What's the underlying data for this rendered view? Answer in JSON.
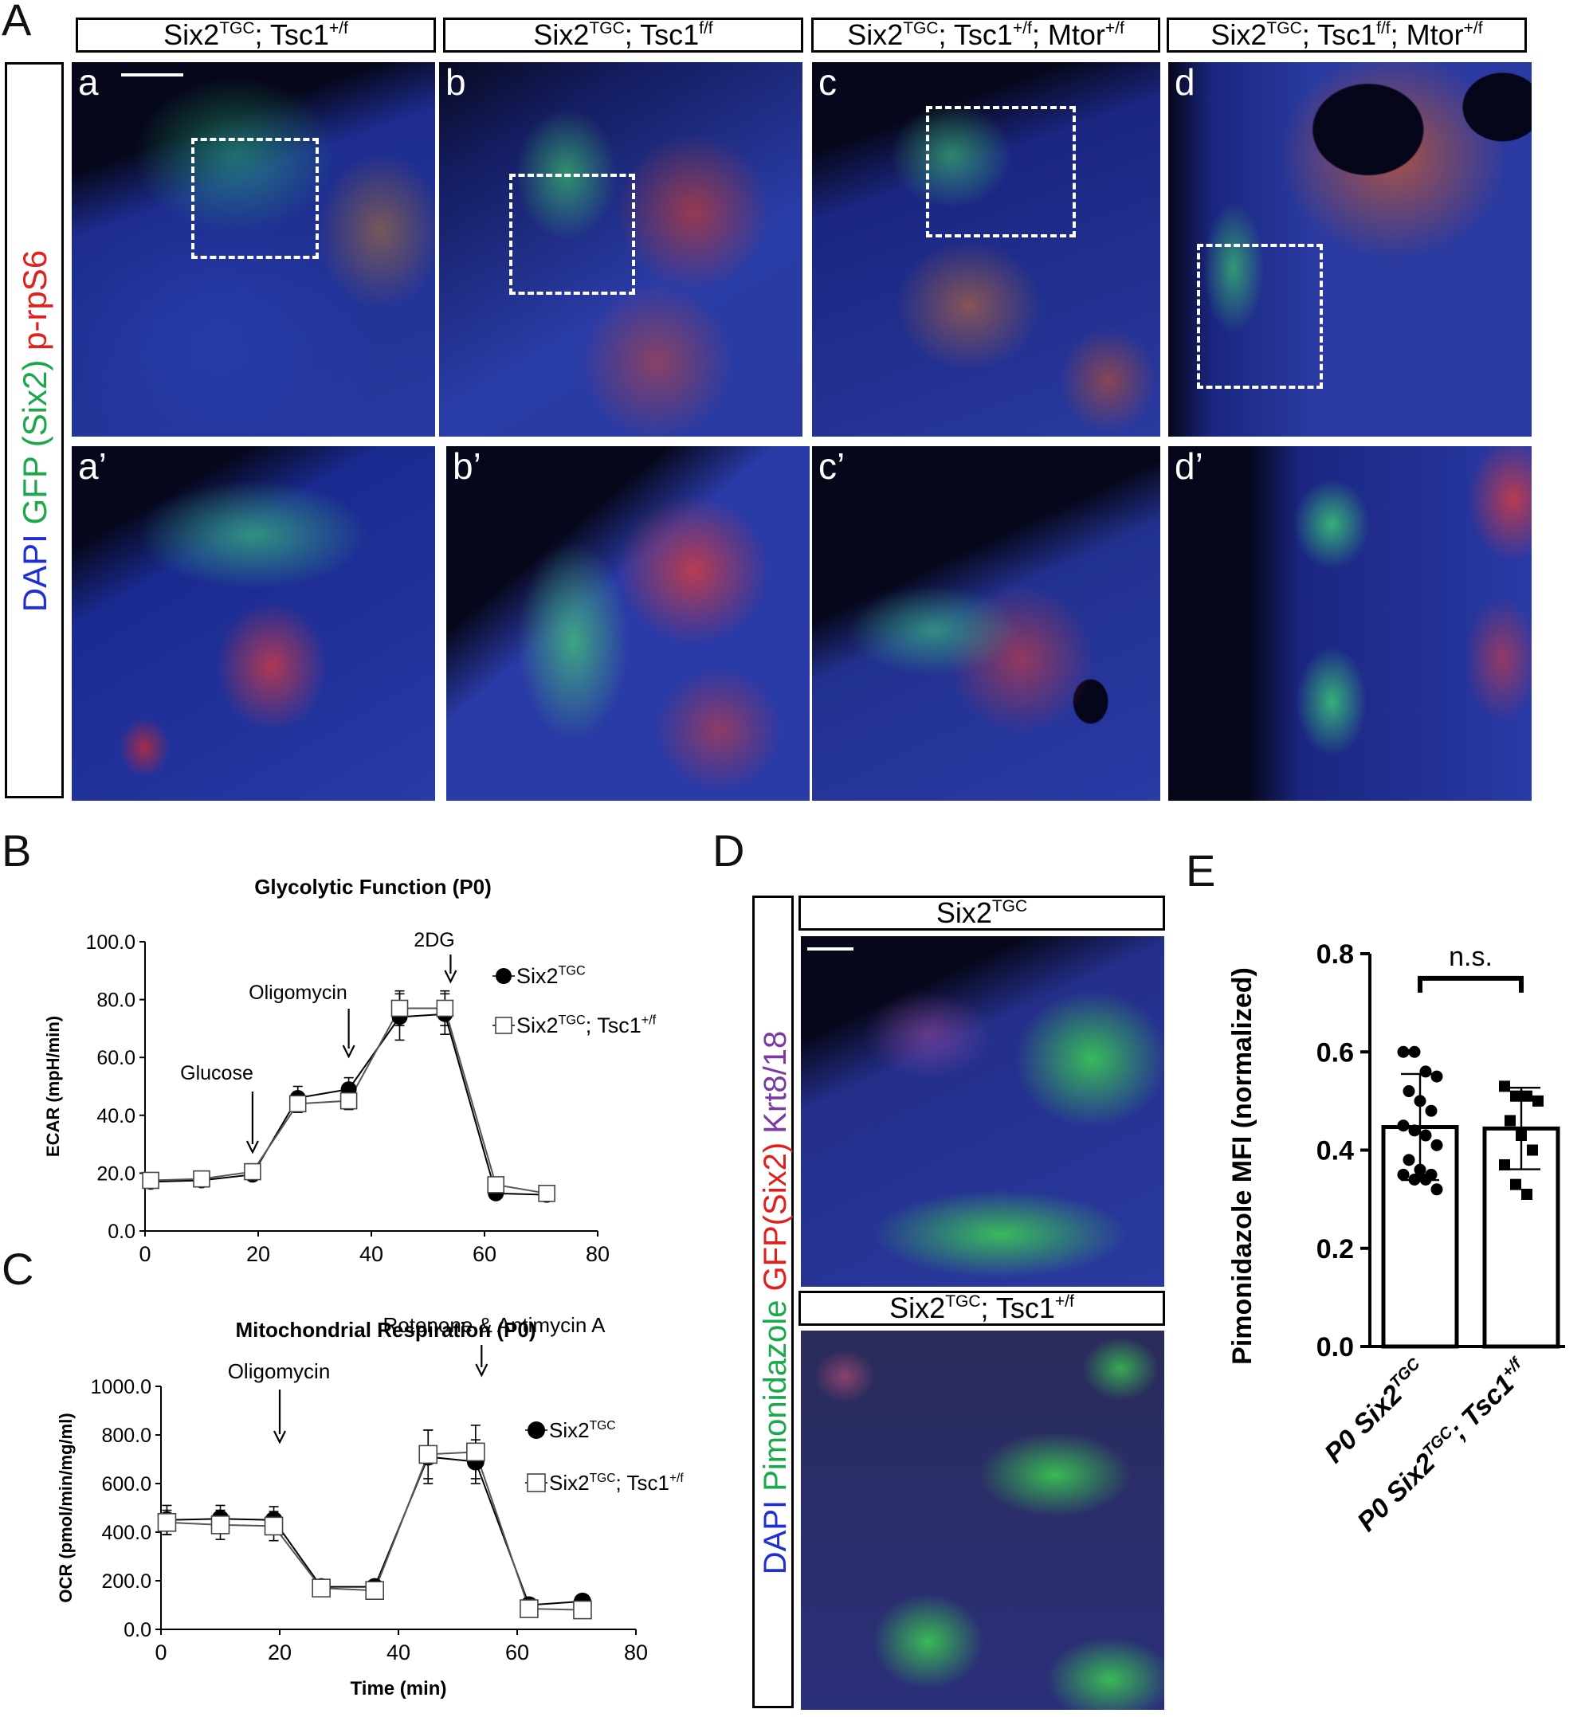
{
  "panels": {
    "A": "A",
    "B": "B",
    "C": "C",
    "D": "D",
    "E": "E"
  },
  "panelA": {
    "headers": [
      {
        "base": "Six2",
        "sup": "TGC",
        "rest": "; Tsc1",
        "sup2": "+/f",
        "rest2": "",
        "sup3": ""
      },
      {
        "base": "Six2",
        "sup": "TGC",
        "rest": "; Tsc1",
        "sup2": "f/f",
        "rest2": "",
        "sup3": ""
      },
      {
        "base": "Six2",
        "sup": "TGC",
        "rest": "; Tsc1",
        "sup2": "+/f",
        "rest2": "; Mtor",
        "sup3": "+/f"
      },
      {
        "base": "Six2",
        "sup": "TGC",
        "rest": "; Tsc1",
        "sup2": "f/f",
        "rest2": "; Mtor",
        "sup3": "+/f"
      }
    ],
    "stain_label": [
      {
        "text": "DAPI",
        "color": "#1f2fd6"
      },
      {
        "text": " GFP (Six2)",
        "color": "#1aa84a"
      },
      {
        "text": " p-rpS6",
        "color": "#e0201b"
      }
    ],
    "top_labels": [
      "a",
      "b",
      "c",
      "d"
    ],
    "bottom_labels": [
      "a’",
      "b’",
      "c’",
      "d’"
    ]
  },
  "panelD": {
    "headers": [
      {
        "base": "Six2",
        "sup": "TGC",
        "rest": "",
        "sup2": ""
      },
      {
        "base": "Six2",
        "sup": "TGC",
        "rest": "; Tsc1",
        "sup2": "+/f"
      }
    ],
    "stain_label": [
      {
        "text": "DAPI",
        "color": "#1f2fd6"
      },
      {
        "text": " Pimonidazole",
        "color": "#1aa84a"
      },
      {
        "text": " GFP(Six2)",
        "color": "#e0201b"
      },
      {
        "text": " Krt8/18",
        "color": "#7a3aa0"
      }
    ]
  },
  "chart_data": [
    {
      "id": "B",
      "type": "line",
      "title": "Glycolytic Function (P0)",
      "xlabel": "",
      "ylabel": "ECAR (mpH/min)",
      "xlim": [
        0,
        80
      ],
      "ylim": [
        0,
        100
      ],
      "xticks": [
        "0",
        "20",
        "40",
        "60",
        "80"
      ],
      "yticks": [
        "0.0",
        "20.0",
        "40.0",
        "60.0",
        "80.0",
        "100.0"
      ],
      "x": [
        1,
        10,
        19,
        27,
        36,
        45,
        53,
        62,
        71
      ],
      "series": [
        {
          "name": "Six2TGC",
          "marker": "filled-circle",
          "values": [
            17,
            17.5,
            19.5,
            46,
            49,
            74,
            75,
            13,
            12.5
          ],
          "err": [
            1.5,
            1.5,
            1.5,
            4,
            4,
            8,
            7,
            1.5,
            1.5
          ]
        },
        {
          "name": "Six2TGC; Tsc1+/f",
          "marker": "open-square",
          "values": [
            17.5,
            18,
            20.5,
            44,
            45,
            77,
            77,
            16,
            13
          ],
          "err": [
            1.5,
            1.5,
            1.5,
            3,
            3,
            6,
            6,
            1.5,
            1.5
          ]
        }
      ],
      "annotations": [
        {
          "text": "Glucose",
          "x": 19
        },
        {
          "text": "Oligomycin",
          "x": 36
        },
        {
          "text": "2DG",
          "x": 54
        }
      ],
      "legend": {
        "position": "right",
        "items": [
          {
            "base": "Six2",
            "sup": "TGC",
            "rest": "",
            "sup2": ""
          },
          {
            "base": "Six2",
            "sup": "TGC",
            "rest": "; Tsc1",
            "sup2": "+/f"
          }
        ]
      }
    },
    {
      "id": "C",
      "type": "line",
      "title": "Mitochondrial Respiration (P0)",
      "xlabel": "Time (min)",
      "ylabel": "OCR (pmol/min/mg/ml)",
      "xlim": [
        0,
        80
      ],
      "ylim": [
        0,
        1000
      ],
      "xticks": [
        "0",
        "20",
        "40",
        "60",
        "80"
      ],
      "yticks": [
        "0.0",
        "200.0",
        "400.0",
        "600.0",
        "800.0",
        "1000.0"
      ],
      "x": [
        1,
        10,
        19,
        27,
        36,
        45,
        53,
        62,
        71
      ],
      "series": [
        {
          "name": "Six2TGC",
          "marker": "filled-circle",
          "values": [
            450,
            455,
            450,
            175,
            175,
            710,
            690,
            100,
            115
          ],
          "err": [
            60,
            55,
            55,
            20,
            20,
            110,
            90,
            20,
            20
          ]
        },
        {
          "name": "Six2TGC; Tsc1+/f",
          "marker": "open-square",
          "values": [
            440,
            430,
            425,
            170,
            160,
            720,
            730,
            85,
            80
          ],
          "err": [
            50,
            60,
            60,
            20,
            20,
            100,
            110,
            15,
            15
          ]
        }
      ],
      "annotations": [
        {
          "text": "Oligomycin",
          "x": 20
        },
        {
          "text": "Rotenone & Antimycin A",
          "x": 54
        }
      ],
      "legend": {
        "position": "right",
        "items": [
          {
            "base": "Six2",
            "sup": "TGC",
            "rest": "",
            "sup2": ""
          },
          {
            "base": "Six2",
            "sup": "TGC",
            "rest": "; Tsc1",
            "sup2": "+/f"
          }
        ]
      }
    },
    {
      "id": "E",
      "type": "bar",
      "ylabel": "Pimonidazole MFI (normalized)",
      "ylim": [
        0,
        0.8
      ],
      "yticks": [
        "0.0",
        "0.2",
        "0.4",
        "0.6",
        "0.8"
      ],
      "categories": [
        {
          "base": "P0 Six2",
          "sup": "TGC",
          "rest": "",
          "sup2": ""
        },
        {
          "base": "P0 Six2",
          "sup": "TGC",
          "rest": "; Tsc1",
          "sup2": "+/f"
        }
      ],
      "values": [
        0.447,
        0.444
      ],
      "sd": [
        0.108,
        0.083
      ],
      "points": [
        [
          0.6,
          0.6,
          0.56,
          0.55,
          0.52,
          0.5,
          0.48,
          0.45,
          0.44,
          0.43,
          0.41,
          0.38,
          0.36,
          0.35,
          0.35,
          0.34,
          0.34,
          0.32
        ],
        [
          0.53,
          0.51,
          0.51,
          0.5,
          0.46,
          0.43,
          0.4,
          0.37,
          0.33,
          0.31
        ]
      ],
      "point_markers": [
        "circle",
        "square"
      ],
      "significance": "n.s."
    }
  ],
  "colors": {
    "accent_green": "#1aa84a",
    "accent_red": "#e0201b",
    "accent_blue": "#1f2fd6",
    "accent_purple": "#7a3aa0"
  }
}
